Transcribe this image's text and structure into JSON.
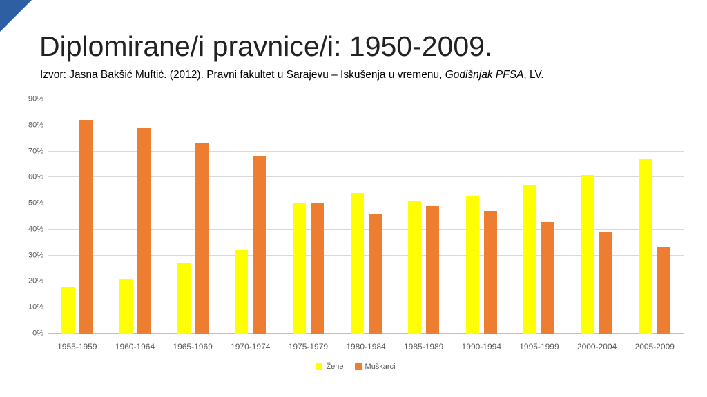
{
  "slide": {
    "title": "Diplomirane/i pravnice/i: 1950-2009.",
    "subtitle_prefix": "Izvor: Jasna Bakšić Muftić. (2012). Pravni fakultet u Sarajevu – Iskušenja u vremenu, ",
    "subtitle_italic": "Godišnjak PFSA",
    "subtitle_suffix": ", LV.",
    "accent_color": "#2e5fa3"
  },
  "chart_data": {
    "type": "bar",
    "title": "",
    "categories": [
      "1955-1959",
      "1960-1964",
      "1965-1969",
      "1970-1974",
      "1975-1979",
      "1980-1984",
      "1985-1989",
      "1990-1994",
      "1995-1999",
      "2000-2004",
      "2005-2009"
    ],
    "series": [
      {
        "name": "Žene",
        "color": "#ffff00",
        "values": [
          18,
          21,
          27,
          32,
          50,
          54,
          51,
          53,
          57,
          61,
          67
        ]
      },
      {
        "name": "Muškarci",
        "color": "#ed7d31",
        "values": [
          82,
          79,
          73,
          68,
          50,
          46,
          49,
          47,
          43,
          39,
          33
        ]
      }
    ],
    "xlabel": "",
    "ylabel": "",
    "ylim": [
      0,
      90
    ],
    "ytick_labels": [
      "0%",
      "10%",
      "20%",
      "30%",
      "40%",
      "50%",
      "60%",
      "70%",
      "80%",
      "90%"
    ],
    "grid": true,
    "gridline_color": "#d9d9d9",
    "legend_position": "bottom"
  }
}
